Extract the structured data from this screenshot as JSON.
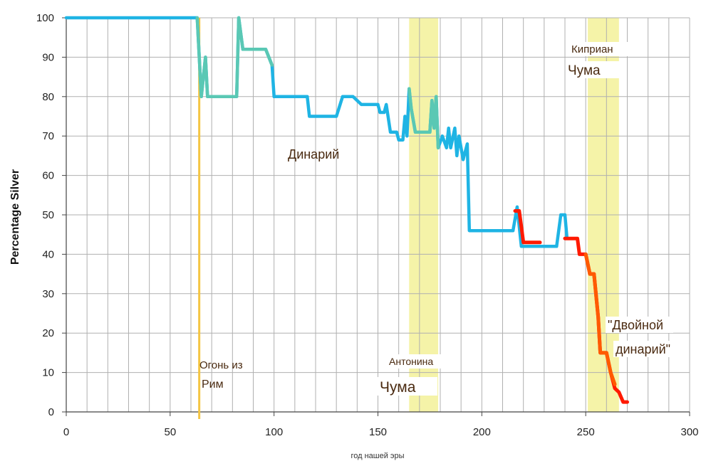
{
  "chart_data": {
    "type": "line",
    "xlabel": "год нашей эры",
    "ylabel": "Percentage Silver",
    "xlim": [
      0,
      300
    ],
    "ylim": [
      0,
      100
    ],
    "xticks": [
      0,
      50,
      100,
      150,
      200,
      250,
      300
    ],
    "yticks": [
      0,
      10,
      20,
      30,
      40,
      50,
      60,
      70,
      80,
      90,
      100
    ],
    "grid": true,
    "colors": {
      "denarius": "#1fb4e4",
      "overlap": "#5ac8b4",
      "red": "#ff1a00",
      "orange": "#ff5a00",
      "fire_line": "#f4c542",
      "plague_band": "#f5f3a8",
      "grid": "#b0b0b0",
      "axis": "#444444"
    },
    "series": [
      {
        "color_key": "denarius",
        "points": [
          [
            0,
            100
          ],
          [
            63,
            100
          ],
          [
            65,
            80
          ],
          [
            67,
            90
          ],
          [
            68,
            80
          ],
          [
            82,
            80
          ],
          [
            83,
            100
          ],
          [
            85,
            92
          ],
          [
            96,
            92
          ],
          [
            99,
            88
          ],
          [
            100,
            80
          ],
          [
            116,
            80
          ],
          [
            117,
            75
          ],
          [
            130,
            75
          ],
          [
            133,
            80
          ],
          [
            138,
            80
          ],
          [
            142,
            78
          ],
          [
            150,
            78
          ],
          [
            151,
            76
          ],
          [
            153,
            76
          ],
          [
            154,
            78
          ],
          [
            156,
            71
          ],
          [
            159,
            71
          ],
          [
            160,
            69
          ],
          [
            162,
            69
          ],
          [
            163,
            75
          ],
          [
            164,
            70
          ],
          [
            165,
            82
          ],
          [
            166,
            77
          ],
          [
            168,
            71
          ],
          [
            175,
            71
          ],
          [
            176,
            79
          ],
          [
            177,
            72
          ],
          [
            178,
            80
          ],
          [
            179,
            67
          ],
          [
            181,
            70
          ],
          [
            183,
            67
          ],
          [
            184,
            72
          ],
          [
            185,
            67
          ],
          [
            187,
            72
          ],
          [
            188,
            65
          ],
          [
            189,
            70
          ],
          [
            191,
            64
          ],
          [
            193,
            68
          ],
          [
            194,
            46
          ],
          [
            215,
            46
          ],
          [
            217,
            52
          ],
          [
            219,
            42
          ],
          [
            236,
            42
          ],
          [
            238,
            50
          ],
          [
            240,
            50
          ],
          [
            241,
            44
          ]
        ]
      },
      {
        "color_key": "overlap",
        "points": [
          [
            63,
            100
          ],
          [
            65,
            80
          ],
          [
            67,
            90
          ],
          [
            68,
            80
          ],
          [
            82,
            80
          ],
          [
            83,
            100
          ],
          [
            85,
            92
          ],
          [
            96,
            92
          ],
          [
            99,
            88
          ]
        ]
      },
      {
        "color_key": "overlap",
        "points": [
          [
            165,
            82
          ],
          [
            166,
            77
          ],
          [
            168,
            71
          ],
          [
            175,
            71
          ],
          [
            176,
            79
          ],
          [
            177,
            72
          ],
          [
            178,
            80
          ],
          [
            179,
            67
          ]
        ]
      },
      {
        "color_key": "red",
        "points": [
          [
            216,
            51
          ],
          [
            218,
            51
          ],
          [
            219,
            47
          ],
          [
            220,
            43
          ],
          [
            228,
            43
          ]
        ]
      },
      {
        "color_key": "red",
        "points": [
          [
            240,
            44
          ],
          [
            246,
            44
          ],
          [
            247,
            40
          ],
          [
            250,
            40
          ],
          [
            252,
            35
          ],
          [
            254,
            35
          ],
          [
            256,
            24
          ],
          [
            257,
            15
          ],
          [
            260,
            15
          ],
          [
            262,
            10
          ],
          [
            264,
            6
          ],
          [
            266,
            5
          ],
          [
            268,
            2.5
          ],
          [
            270,
            2.5
          ]
        ]
      },
      {
        "color_key": "orange",
        "points": [
          [
            250,
            40
          ],
          [
            252,
            35
          ],
          [
            254,
            35
          ],
          [
            256,
            24
          ],
          [
            257,
            15
          ],
          [
            260,
            15
          ],
          [
            262,
            10
          ],
          [
            264,
            7
          ]
        ]
      }
    ],
    "vline": {
      "x": 64,
      "color_key": "fire_line"
    },
    "bands": [
      {
        "x0": 165,
        "x1": 179,
        "color_key": "plague_band"
      },
      {
        "x0": 251,
        "x1": 266,
        "color_key": "plague_band"
      }
    ],
    "annotations": [
      {
        "key": "fire_1",
        "text": "Огонь из"
      },
      {
        "key": "fire_2",
        "text": "Рим"
      },
      {
        "key": "denarius",
        "text": "Динарий"
      },
      {
        "key": "antonine_1",
        "text": "Антонина"
      },
      {
        "key": "antonine_2",
        "text": "Чума"
      },
      {
        "key": "cyprian_1",
        "text": "Киприан"
      },
      {
        "key": "cyprian_2",
        "text": "Чума"
      },
      {
        "key": "double_1",
        "text": "\"Двойной"
      },
      {
        "key": "double_2",
        "text": "динарий\""
      }
    ]
  }
}
